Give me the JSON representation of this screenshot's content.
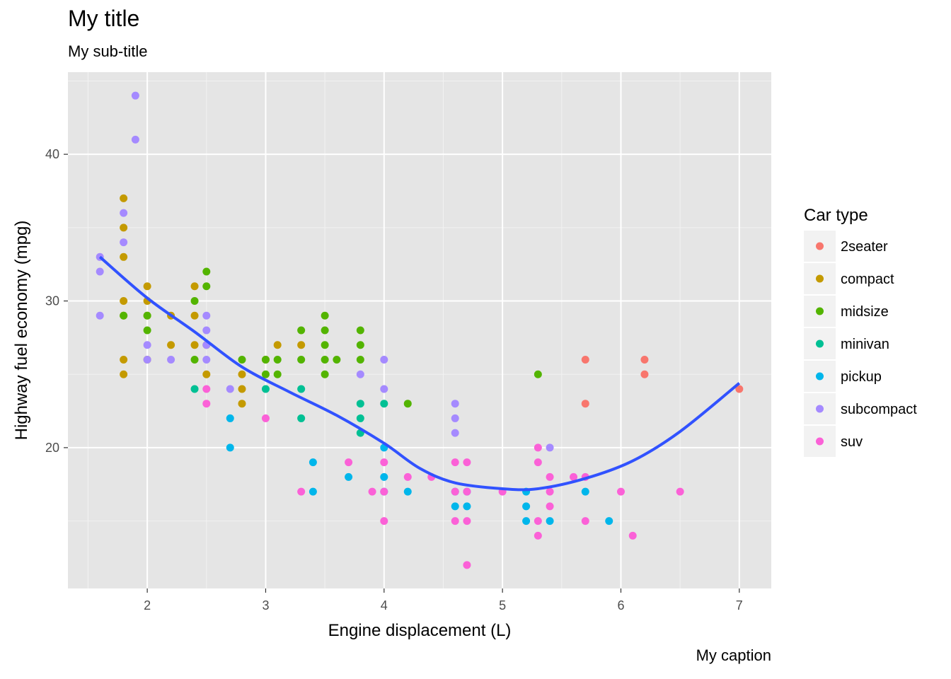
{
  "chart_data": {
    "type": "scatter",
    "title": "My title",
    "subtitle": "My sub-title",
    "caption": "My caption",
    "xlabel": "Engine displacement (L)",
    "ylabel": "Highway fuel economy (mpg)",
    "xlim": [
      1.33,
      7.27
    ],
    "ylim": [
      10.4,
      45.6
    ],
    "x_ticks": [
      2,
      3,
      4,
      5,
      6,
      7
    ],
    "y_ticks": [
      20,
      30,
      40
    ],
    "legend_title": "Car type",
    "legend_position": "right",
    "grid": true,
    "panel_background": "#e5e5e5",
    "smooth_color": "#3152ff",
    "categories": [
      {
        "name": "2seater",
        "color": "#f8766d"
      },
      {
        "name": "compact",
        "color": "#c49a00"
      },
      {
        "name": "midsize",
        "color": "#53b400"
      },
      {
        "name": "minivan",
        "color": "#00c094"
      },
      {
        "name": "pickup",
        "color": "#00b6eb"
      },
      {
        "name": "subcompact",
        "color": "#a58aff"
      },
      {
        "name": "suv",
        "color": "#fb61d7"
      }
    ],
    "series": [
      {
        "name": "2seater",
        "points": [
          [
            5.7,
            26
          ],
          [
            5.7,
            23
          ],
          [
            6.2,
            26
          ],
          [
            6.2,
            25
          ],
          [
            7.0,
            24
          ]
        ]
      },
      {
        "name": "compact",
        "points": [
          [
            1.8,
            37
          ],
          [
            1.8,
            35
          ],
          [
            1.8,
            33
          ],
          [
            1.8,
            30
          ],
          [
            1.8,
            29
          ],
          [
            1.8,
            26
          ],
          [
            1.8,
            25
          ],
          [
            2.0,
            31
          ],
          [
            2.0,
            30
          ],
          [
            2.0,
            29
          ],
          [
            2.0,
            26
          ],
          [
            2.2,
            29
          ],
          [
            2.2,
            27
          ],
          [
            2.4,
            31
          ],
          [
            2.4,
            29
          ],
          [
            2.4,
            27
          ],
          [
            2.5,
            27
          ],
          [
            2.5,
            25
          ],
          [
            2.8,
            25
          ],
          [
            2.8,
            24
          ],
          [
            2.8,
            23
          ],
          [
            3.0,
            26
          ],
          [
            3.1,
            27
          ],
          [
            3.3,
            27
          ]
        ]
      },
      {
        "name": "midsize",
        "points": [
          [
            1.8,
            29
          ],
          [
            2.0,
            29
          ],
          [
            2.0,
            28
          ],
          [
            2.4,
            30
          ],
          [
            2.4,
            26
          ],
          [
            2.5,
            32
          ],
          [
            2.5,
            31
          ],
          [
            2.8,
            26
          ],
          [
            3.0,
            25
          ],
          [
            3.0,
            26
          ],
          [
            3.1,
            26
          ],
          [
            3.1,
            25
          ],
          [
            3.3,
            28
          ],
          [
            3.3,
            26
          ],
          [
            3.5,
            29
          ],
          [
            3.5,
            28
          ],
          [
            3.5,
            27
          ],
          [
            3.5,
            26
          ],
          [
            3.5,
            25
          ],
          [
            3.6,
            26
          ],
          [
            3.8,
            28
          ],
          [
            3.8,
            27
          ],
          [
            3.8,
            26
          ],
          [
            4.2,
            23
          ],
          [
            5.3,
            25
          ]
        ]
      },
      {
        "name": "minivan",
        "points": [
          [
            2.4,
            24
          ],
          [
            3.0,
            24
          ],
          [
            3.3,
            24
          ],
          [
            3.3,
            22
          ],
          [
            3.8,
            23
          ],
          [
            3.8,
            22
          ],
          [
            3.8,
            21
          ],
          [
            4.0,
            23
          ]
        ]
      },
      {
        "name": "pickup",
        "points": [
          [
            2.7,
            22
          ],
          [
            2.7,
            20
          ],
          [
            3.4,
            19
          ],
          [
            3.4,
            17
          ],
          [
            3.7,
            18
          ],
          [
            4.0,
            20
          ],
          [
            4.0,
            18
          ],
          [
            4.0,
            17
          ],
          [
            4.2,
            17
          ],
          [
            4.6,
            17
          ],
          [
            4.6,
            16
          ],
          [
            4.7,
            16
          ],
          [
            4.7,
            17
          ],
          [
            5.2,
            17
          ],
          [
            5.2,
            16
          ],
          [
            5.2,
            15
          ],
          [
            5.4,
            15
          ],
          [
            5.7,
            17
          ],
          [
            5.9,
            15
          ]
        ]
      },
      {
        "name": "subcompact",
        "points": [
          [
            1.6,
            33
          ],
          [
            1.6,
            32
          ],
          [
            1.6,
            29
          ],
          [
            1.8,
            36
          ],
          [
            1.8,
            34
          ],
          [
            1.9,
            44
          ],
          [
            1.9,
            41
          ],
          [
            2.0,
            27
          ],
          [
            2.0,
            26
          ],
          [
            2.2,
            26
          ],
          [
            2.5,
            29
          ],
          [
            2.5,
            28
          ],
          [
            2.5,
            27
          ],
          [
            2.5,
            26
          ],
          [
            2.7,
            24
          ],
          [
            3.8,
            25
          ],
          [
            4.0,
            26
          ],
          [
            4.0,
            24
          ],
          [
            4.6,
            23
          ],
          [
            4.6,
            22
          ],
          [
            4.6,
            21
          ],
          [
            5.4,
            20
          ]
        ]
      },
      {
        "name": "suv",
        "points": [
          [
            2.5,
            24
          ],
          [
            2.5,
            23
          ],
          [
            3.0,
            22
          ],
          [
            3.3,
            17
          ],
          [
            3.7,
            19
          ],
          [
            3.9,
            17
          ],
          [
            4.0,
            19
          ],
          [
            4.0,
            17
          ],
          [
            4.0,
            15
          ],
          [
            4.2,
            18
          ],
          [
            4.4,
            18
          ],
          [
            4.6,
            19
          ],
          [
            4.6,
            17
          ],
          [
            4.6,
            15
          ],
          [
            4.7,
            19
          ],
          [
            4.7,
            17
          ],
          [
            4.7,
            15
          ],
          [
            4.7,
            12
          ],
          [
            5.0,
            17
          ],
          [
            5.3,
            20
          ],
          [
            5.3,
            19
          ],
          [
            5.3,
            15
          ],
          [
            5.3,
            14
          ],
          [
            5.4,
            18
          ],
          [
            5.4,
            17
          ],
          [
            5.4,
            16
          ],
          [
            5.6,
            18
          ],
          [
            5.7,
            18
          ],
          [
            5.7,
            15
          ],
          [
            6.0,
            17
          ],
          [
            6.1,
            14
          ],
          [
            6.5,
            17
          ]
        ]
      }
    ],
    "smooth_line": [
      [
        1.6,
        33
      ],
      [
        2.0,
        30.2
      ],
      [
        2.4,
        27.9
      ],
      [
        2.8,
        25.5
      ],
      [
        3.2,
        23.8
      ],
      [
        3.6,
        22.2
      ],
      [
        4.0,
        20.3
      ],
      [
        4.3,
        18.6
      ],
      [
        4.6,
        17.6
      ],
      [
        5.0,
        17.2
      ],
      [
        5.3,
        17.2
      ],
      [
        5.7,
        17.9
      ],
      [
        6.1,
        19.1
      ],
      [
        6.5,
        21.1
      ],
      [
        7.0,
        24.4
      ]
    ]
  }
}
